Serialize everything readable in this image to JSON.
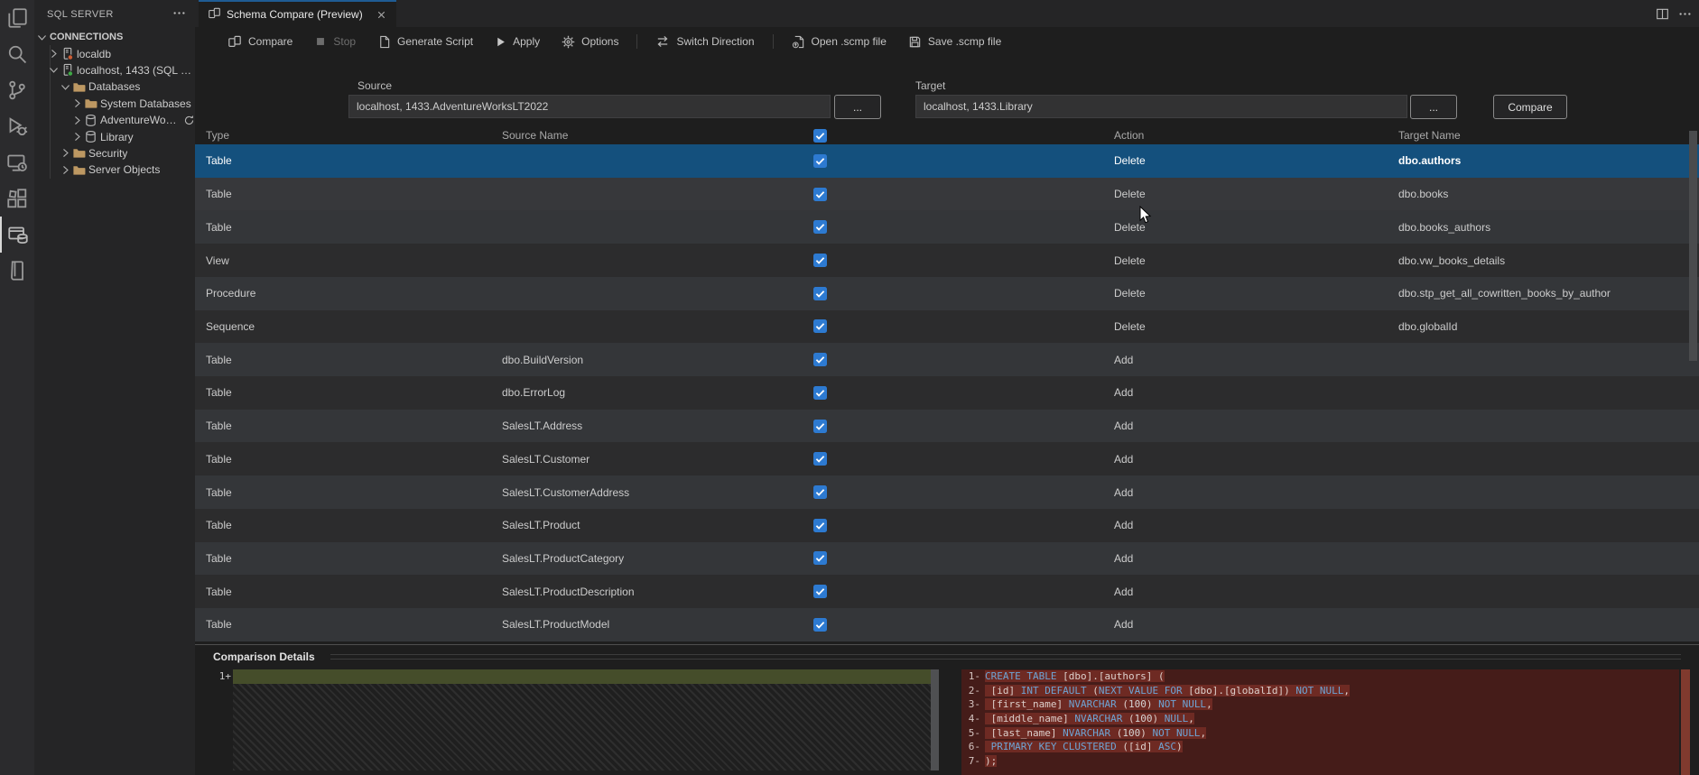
{
  "colors": {
    "selection_blue": "#14507d",
    "checkbox_blue": "#2d7ad1",
    "tab_accent": "#1f5c94",
    "diff_removed_bg": "#451c19",
    "diff_removed_char": "#6e2a23",
    "diff_added_bg": "#454d2a"
  },
  "activity_bar": {
    "icons": [
      "explorer-icon",
      "search-icon",
      "source-control-icon",
      "run-debug-icon",
      "remote-explorer-icon",
      "extensions-icon",
      "sql-server-icon",
      "book-icon"
    ],
    "active_index": 6
  },
  "sidebar": {
    "title": "SQL SERVER",
    "more_label": "more-actions",
    "tree": [
      {
        "label": "CONNECTIONS",
        "level": 0,
        "twisty": "expanded",
        "icon": "",
        "root": true
      },
      {
        "label": "localdb",
        "level": 1,
        "twisty": "collapsed",
        "icon": "server-orange-icon"
      },
      {
        "label": "localhost, 1433 (SQL Serv...",
        "level": 1,
        "twisty": "expanded",
        "icon": "server-green-icon"
      },
      {
        "label": "Databases",
        "level": 2,
        "twisty": "expanded",
        "icon": "folder-icon"
      },
      {
        "label": "System Databases",
        "level": 3,
        "twisty": "collapsed",
        "icon": "folder-icon"
      },
      {
        "label": "AdventureWorksLT...",
        "level": 3,
        "twisty": "collapsed",
        "icon": "database-icon",
        "suffix": "refresh-icon"
      },
      {
        "label": "Library",
        "level": 3,
        "twisty": "collapsed",
        "icon": "database-icon"
      },
      {
        "label": "Security",
        "level": 2,
        "twisty": "collapsed",
        "icon": "folder-icon"
      },
      {
        "label": "Server Objects",
        "level": 2,
        "twisty": "collapsed",
        "icon": "folder-icon"
      }
    ]
  },
  "editor": {
    "tab": {
      "title": "Schema Compare (Preview)",
      "icon": "schema-compare-icon"
    },
    "tab_actions": [
      "split-editor-icon",
      "more-actions-icon"
    ],
    "toolbar": [
      {
        "label": "Compare",
        "icon": "compare-icon"
      },
      {
        "label": "Stop",
        "icon": "stop-icon",
        "disabled": true
      },
      {
        "label": "Generate Script",
        "icon": "script-icon"
      },
      {
        "label": "Apply",
        "icon": "apply-icon"
      },
      {
        "label": "Options",
        "icon": "options-icon"
      },
      {
        "sep": true
      },
      {
        "label": "Switch Direction",
        "icon": "switch-icon"
      },
      {
        "sep": true
      },
      {
        "label": "Open .scmp file",
        "icon": "open-file-icon"
      },
      {
        "label": "Save .scmp file",
        "icon": "save-icon"
      }
    ],
    "source": {
      "label": "Source",
      "value": "localhost, 1433.AdventureWorksLT2022",
      "browse": "..."
    },
    "target": {
      "label": "Target",
      "value": "localhost, 1433.Library",
      "browse": "..."
    },
    "compare_button": "Compare"
  },
  "grid": {
    "columns": [
      "Type",
      "Source Name",
      "Action",
      "Target Name"
    ],
    "header_checkbox_checked": true,
    "rows": [
      {
        "type": "Table",
        "source": "",
        "checked": true,
        "action": "Delete",
        "target": "dbo.authors",
        "selected": true
      },
      {
        "type": "Table",
        "source": "",
        "checked": true,
        "action": "Delete",
        "target": "dbo.books",
        "hovered": true
      },
      {
        "type": "Table",
        "source": "",
        "checked": true,
        "action": "Delete",
        "target": "dbo.books_authors"
      },
      {
        "type": "View",
        "source": "",
        "checked": true,
        "action": "Delete",
        "target": "dbo.vw_books_details"
      },
      {
        "type": "Procedure",
        "source": "",
        "checked": true,
        "action": "Delete",
        "target": "dbo.stp_get_all_cowritten_books_by_author"
      },
      {
        "type": "Sequence",
        "source": "",
        "checked": true,
        "action": "Delete",
        "target": "dbo.globalId"
      },
      {
        "type": "Table",
        "source": "dbo.BuildVersion",
        "checked": true,
        "action": "Add",
        "target": ""
      },
      {
        "type": "Table",
        "source": "dbo.ErrorLog",
        "checked": true,
        "action": "Add",
        "target": ""
      },
      {
        "type": "Table",
        "source": "SalesLT.Address",
        "checked": true,
        "action": "Add",
        "target": ""
      },
      {
        "type": "Table",
        "source": "SalesLT.Customer",
        "checked": true,
        "action": "Add",
        "target": ""
      },
      {
        "type": "Table",
        "source": "SalesLT.CustomerAddress",
        "checked": true,
        "action": "Add",
        "target": ""
      },
      {
        "type": "Table",
        "source": "SalesLT.Product",
        "checked": true,
        "action": "Add",
        "target": ""
      },
      {
        "type": "Table",
        "source": "SalesLT.ProductCategory",
        "checked": true,
        "action": "Add",
        "target": ""
      },
      {
        "type": "Table",
        "source": "SalesLT.ProductDescription",
        "checked": true,
        "action": "Add",
        "target": ""
      },
      {
        "type": "Table",
        "source": "SalesLT.ProductModel",
        "checked": true,
        "action": "Add",
        "target": ""
      }
    ]
  },
  "details": {
    "title": "Comparison Details",
    "left_pane": {
      "lines": [
        {
          "num": "1",
          "sign": "+",
          "text": ""
        }
      ]
    },
    "right_pane": {
      "lines": [
        {
          "num": "1",
          "sign": "-",
          "segments": [
            {
              "t": "CREATE TABLE ",
              "c": "kw"
            },
            {
              "t": "[dbo].[authors] (",
              "c": "id"
            }
          ]
        },
        {
          "num": "2",
          "sign": "-",
          "segments": [
            {
              "t": " [id] ",
              "c": "id"
            },
            {
              "t": "INT DEFAULT ",
              "c": "kw"
            },
            {
              "t": "(",
              "c": "id"
            },
            {
              "t": "NEXT VALUE FOR ",
              "c": "kw"
            },
            {
              "t": "[dbo].[globalId]",
              "c": "id"
            },
            {
              "t": ") ",
              "c": "id"
            },
            {
              "t": "NOT NULL",
              "c": "kw"
            },
            {
              "t": ",",
              "c": "id"
            }
          ]
        },
        {
          "num": "3",
          "sign": "-",
          "segments": [
            {
              "t": " [first_name] ",
              "c": "id"
            },
            {
              "t": "NVARCHAR ",
              "c": "kw"
            },
            {
              "t": "(",
              "c": "id"
            },
            {
              "t": "100",
              "c": "num"
            },
            {
              "t": ") ",
              "c": "id"
            },
            {
              "t": "NOT NULL",
              "c": "kw"
            },
            {
              "t": ",",
              "c": "id"
            }
          ]
        },
        {
          "num": "4",
          "sign": "-",
          "segments": [
            {
              "t": " [middle_name] ",
              "c": "id"
            },
            {
              "t": "NVARCHAR ",
              "c": "kw"
            },
            {
              "t": "(",
              "c": "id"
            },
            {
              "t": "100",
              "c": "num"
            },
            {
              "t": ") ",
              "c": "id"
            },
            {
              "t": "NULL",
              "c": "kw"
            },
            {
              "t": ",",
              "c": "id"
            }
          ]
        },
        {
          "num": "5",
          "sign": "-",
          "segments": [
            {
              "t": " [last_name] ",
              "c": "id"
            },
            {
              "t": "NVARCHAR ",
              "c": "kw"
            },
            {
              "t": "(",
              "c": "id"
            },
            {
              "t": "100",
              "c": "num"
            },
            {
              "t": ") ",
              "c": "id"
            },
            {
              "t": "NOT NULL",
              "c": "kw"
            },
            {
              "t": ",",
              "c": "id"
            }
          ]
        },
        {
          "num": "6",
          "sign": "-",
          "segments": [
            {
              "t": " ",
              "c": "id"
            },
            {
              "t": "PRIMARY KEY CLUSTERED ",
              "c": "kw"
            },
            {
              "t": "([id] ",
              "c": "id"
            },
            {
              "t": "ASC",
              "c": "kw"
            },
            {
              "t": ")",
              "c": "id"
            }
          ]
        },
        {
          "num": "7",
          "sign": "-",
          "segments": [
            {
              "t": ");",
              "c": "id"
            }
          ]
        }
      ]
    }
  }
}
